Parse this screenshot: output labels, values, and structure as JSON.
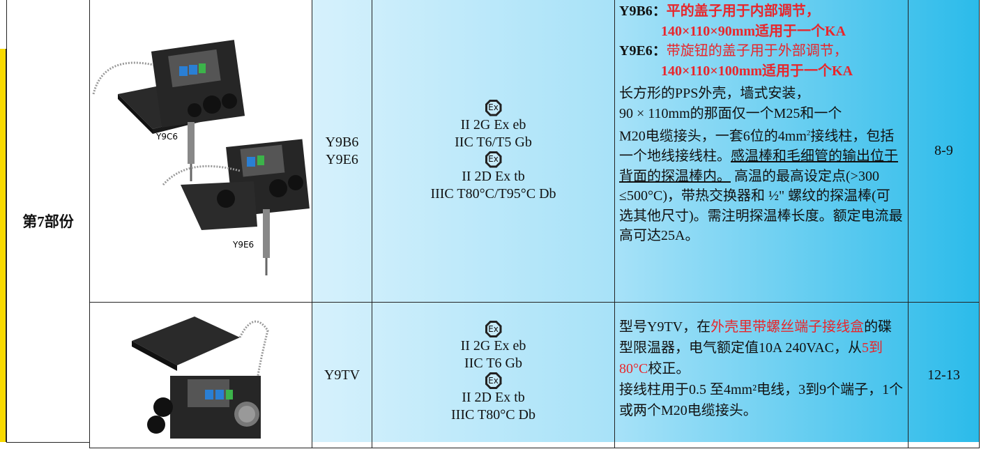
{
  "section": "第7部份",
  "ex_mark": "Ex",
  "rows": [
    {
      "image_labels": [
        "Y9C6",
        "Y9E6"
      ],
      "models": [
        "Y9B6",
        "Y9E6"
      ],
      "cert": [
        "II 2G Ex eb",
        "IIC T6/T5 Gb",
        "II 2D Ex tb",
        "IIIC T80°C/T95°C Db"
      ],
      "description": [
        "Y9B6：",
        "平的盖子用于内部调节，",
        "140×110×90mm适用于一个KA",
        "Y9E6：",
        "带旋钮的盖子用于外部调节，",
        "140×110×100mm适用于一个KA",
        "长方形的PPS外壳，墙式安装，",
        "90 × 110mm的那面仅一个M25和一个",
        "M20电缆接头，一套6位的4mm",
        "2",
        "接线柱，包括一个地线接线柱。",
        "感温棒和毛细管的输出位于背面的探温棒内。",
        "高温的最高设定点(>300 ≤500°C)，带热交换器和 ½\" 螺纹的探温棒(可选其他尺寸)。需注明探温棒长度。额定电流最高可达25A。"
      ],
      "pages": "8-9"
    },
    {
      "models": [
        "Y9TV"
      ],
      "cert": [
        "II 2G Ex eb",
        "IIC T6 Gb",
        "II 2D Ex tb",
        "IIIC T80°C Db"
      ],
      "description": [
        "型号Y9TV，在",
        "外壳里带螺丝端子接线盒",
        "的碟型限温器，电气额定值10A 240VAC，从",
        "5到80°C",
        "校正。",
        "接线柱用于0.5 至4mm²电线，3到9个端子，1个或两个M20电缆接头。"
      ],
      "pages": "12-13"
    }
  ]
}
